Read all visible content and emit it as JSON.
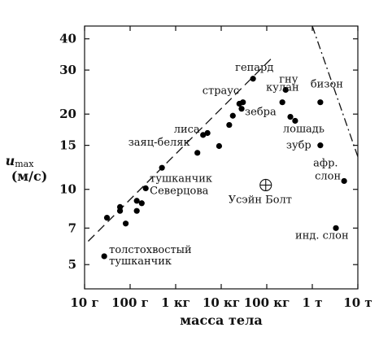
{
  "chart_data": {
    "type": "scatter",
    "xlabel": "масса тела",
    "ylabel_var": "u",
    "ylabel_sub": "max",
    "ylabel_unit": "(м/с)",
    "x_scale": "log",
    "y_scale": "log",
    "xlim_kg": [
      0.01,
      10000
    ],
    "ylim_mps": [
      4,
      45
    ],
    "x_ticks": [
      {
        "v": 0.01,
        "label": "10 г"
      },
      {
        "v": 0.1,
        "label": "100 г"
      },
      {
        "v": 1,
        "label": "1 кг"
      },
      {
        "v": 10,
        "label": "10 кг"
      },
      {
        "v": 100,
        "label": "100 кг"
      },
      {
        "v": 1000,
        "label": "1 т"
      },
      {
        "v": 10000,
        "label": "10 т"
      }
    ],
    "y_ticks": [
      {
        "v": 5,
        "label": "5"
      },
      {
        "v": 7,
        "label": "7"
      },
      {
        "v": 10,
        "label": "10"
      },
      {
        "v": 15,
        "label": "15"
      },
      {
        "v": 20,
        "label": "20"
      },
      {
        "v": 30,
        "label": "30"
      },
      {
        "v": 40,
        "label": "40"
      }
    ],
    "points": [
      {
        "m": 0.027,
        "u": 5.4
      },
      {
        "m": 0.031,
        "u": 7.7
      },
      {
        "m": 0.06,
        "u": 8.2
      },
      {
        "m": 0.06,
        "u": 8.5
      },
      {
        "m": 0.08,
        "u": 7.3
      },
      {
        "m": 0.14,
        "u": 9.0
      },
      {
        "m": 0.14,
        "u": 8.2
      },
      {
        "m": 0.18,
        "u": 8.8
      },
      {
        "m": 0.22,
        "u": 10.1
      },
      {
        "m": 0.5,
        "u": 12.2
      },
      {
        "m": 3,
        "u": 14.0
      },
      {
        "m": 4,
        "u": 16.5
      },
      {
        "m": 5,
        "u": 16.8
      },
      {
        "m": 9,
        "u": 14.9
      },
      {
        "m": 15,
        "u": 18.1
      },
      {
        "m": 18,
        "u": 19.7
      },
      {
        "m": 25,
        "u": 22.0
      },
      {
        "m": 28,
        "u": 21.0
      },
      {
        "m": 30,
        "u": 22.3
      },
      {
        "m": 50,
        "u": 27.7
      },
      {
        "m": 220,
        "u": 22.3
      },
      {
        "m": 260,
        "u": 25.0
      },
      {
        "m": 330,
        "u": 19.5
      },
      {
        "m": 420,
        "u": 18.8
      },
      {
        "m": 1500,
        "u": 22.3
      },
      {
        "m": 1500,
        "u": 15.0
      },
      {
        "m": 3300,
        "u": 7.0
      },
      {
        "m": 5000,
        "u": 10.8
      }
    ],
    "usain_bolt": {
      "m": 95,
      "u": 10.4
    },
    "labels": [
      {
        "text": "гепард",
        "m": 50,
        "u": 27.7
      },
      {
        "text": "страус",
        "m": 30,
        "u": 22.3
      },
      {
        "text": "гну",
        "m": 260,
        "u": 25.0
      },
      {
        "text": "кулан",
        "m": 220,
        "u": 22.3
      },
      {
        "text": "бизон",
        "m": 1500,
        "u": 22.3
      },
      {
        "text": "зебра",
        "m": 330,
        "u": 19.5
      },
      {
        "text": "лошадь",
        "m": 420,
        "u": 18.8
      },
      {
        "text": "лиса",
        "m": 4,
        "u": 16.5
      },
      {
        "text": "заяц-беляк",
        "m": 3,
        "u": 14.0
      },
      {
        "text": "зубр",
        "m": 1500,
        "u": 15.0
      },
      {
        "text": "афр.",
        "m": 5000,
        "u": 10.8
      },
      {
        "text": "слон",
        "m": 5000,
        "u": 10.8
      },
      {
        "text": "тушканчик",
        "m": 0.22,
        "u": 10.1
      },
      {
        "text": "Северцова",
        "m": 0.22,
        "u": 10.1
      },
      {
        "text": "Усэйн Болт",
        "m": 95,
        "u": 10.4
      },
      {
        "text": "инд. слон",
        "m": 3300,
        "u": 7.0
      },
      {
        "text": "толстохвостый",
        "m": 0.027,
        "u": 5.4
      },
      {
        "text": "тушканчик",
        "m": 0.027,
        "u": 5.4
      }
    ],
    "dashed_line": [
      [
        0.012,
        6.2
      ],
      [
        140,
        34
      ]
    ],
    "dashdot_line": [
      [
        1000,
        45
      ],
      [
        10000,
        13.5
      ]
    ]
  }
}
